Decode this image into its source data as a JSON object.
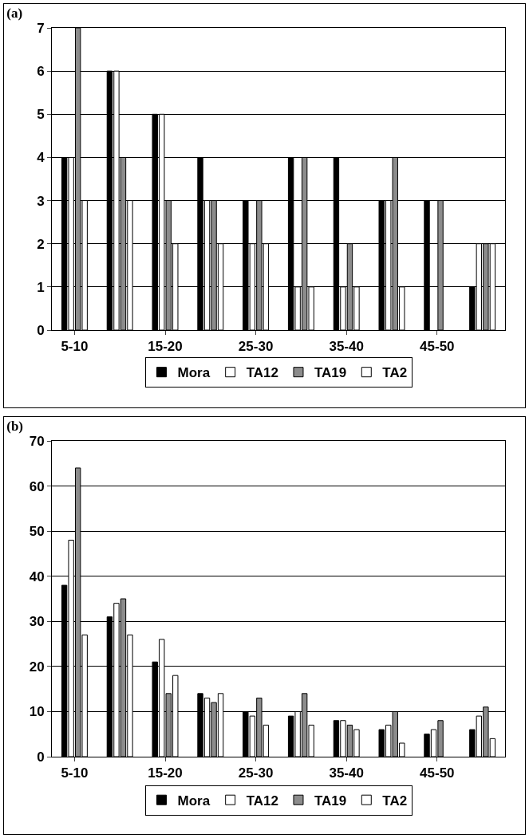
{
  "chart_data": [
    {
      "type": "bar",
      "title": "(a)",
      "categories": [
        "5-10",
        null,
        "15-20",
        null,
        "25-30",
        null,
        "35-40",
        null,
        "45-50",
        null
      ],
      "ylim": [
        0,
        7
      ],
      "yticks": [
        0,
        1,
        2,
        3,
        4,
        5,
        6,
        7
      ],
      "grid": "y",
      "legend": "bottom",
      "series": [
        {
          "name": "Mora",
          "color": "#000000",
          "values": [
            4,
            6,
            5,
            4,
            3,
            4,
            4,
            3,
            3,
            1
          ]
        },
        {
          "name": "TA12",
          "color": "#ffffff",
          "values": [
            4,
            6,
            5,
            3,
            2,
            1,
            1,
            3,
            0,
            2
          ]
        },
        {
          "name": "TA19",
          "color": "#8c8c8c",
          "values": [
            7,
            4,
            3,
            3,
            3,
            4,
            2,
            4,
            3,
            2
          ]
        },
        {
          "name": "TA2",
          "color": "#ffffff",
          "values": [
            3,
            3,
            2,
            2,
            2,
            1,
            1,
            1,
            0,
            2
          ]
        }
      ]
    },
    {
      "type": "bar",
      "title": "(b)",
      "categories": [
        "5-10",
        null,
        "15-20",
        null,
        "25-30",
        null,
        "35-40",
        null,
        "45-50",
        null
      ],
      "ylim": [
        0,
        70
      ],
      "yticks": [
        0,
        10,
        20,
        30,
        40,
        50,
        60,
        70
      ],
      "grid": "y",
      "legend": "bottom",
      "series": [
        {
          "name": "Mora",
          "color": "#000000",
          "values": [
            38,
            31,
            21,
            14,
            10,
            9,
            8,
            6,
            5,
            6
          ]
        },
        {
          "name": "TA12",
          "color": "#ffffff",
          "values": [
            48,
            34,
            26,
            13,
            9,
            10,
            8,
            7,
            6,
            9
          ]
        },
        {
          "name": "TA19",
          "color": "#8c8c8c",
          "values": [
            64,
            35,
            14,
            12,
            13,
            14,
            7,
            10,
            8,
            11
          ]
        },
        {
          "name": "TA2",
          "color": "#ffffff",
          "values": [
            27,
            27,
            18,
            14,
            7,
            7,
            6,
            3,
            0,
            4
          ]
        }
      ]
    }
  ]
}
